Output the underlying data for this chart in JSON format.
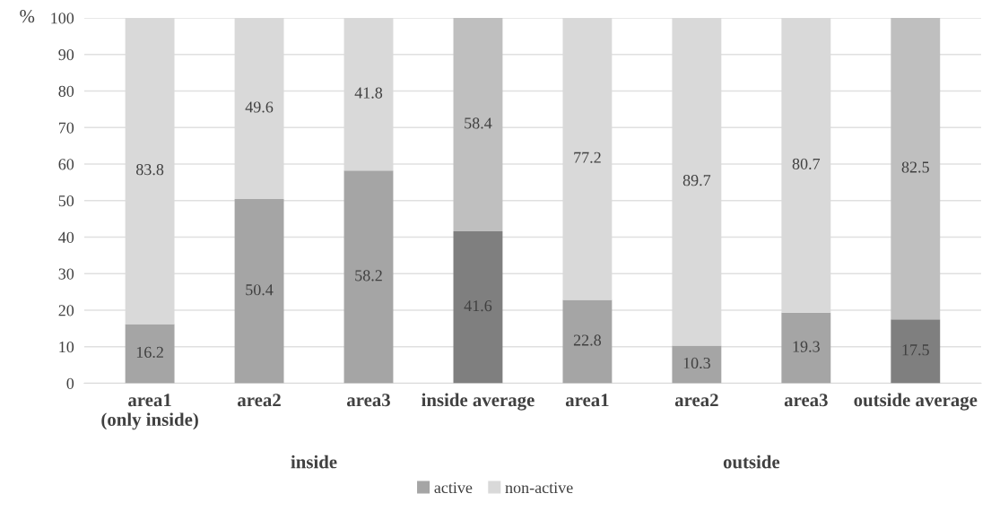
{
  "chart_data": {
    "type": "bar",
    "stacked": true,
    "ylabel": "%",
    "categories": [
      "area1\n(only inside)",
      "area2",
      "area3",
      "inside average",
      "area1",
      "area2",
      "area3",
      "outside average"
    ],
    "series": [
      {
        "name": "active",
        "color": "#a5a5a5",
        "colors": [
          "#a5a5a5",
          "#a5a5a5",
          "#a5a5a5",
          "#7f7f7f",
          "#a5a5a5",
          "#a5a5a5",
          "#a5a5a5",
          "#7f7f7f"
        ],
        "values": [
          16.2,
          50.4,
          58.2,
          41.6,
          22.8,
          10.3,
          19.3,
          17.5
        ]
      },
      {
        "name": "non-active",
        "color": "#d9d9d9",
        "colors": [
          "#d9d9d9",
          "#d9d9d9",
          "#d9d9d9",
          "#bfbfbf",
          "#d9d9d9",
          "#d9d9d9",
          "#d9d9d9",
          "#bfbfbf"
        ],
        "values": [
          83.8,
          49.6,
          41.8,
          58.4,
          77.2,
          89.7,
          80.7,
          82.5
        ]
      }
    ],
    "ylim": [
      0,
      100
    ],
    "yticks": [
      0,
      10,
      20,
      30,
      40,
      50,
      60,
      70,
      80,
      90,
      100
    ],
    "grid": "y",
    "legend": "bottom",
    "data_labels": true,
    "annotations": [
      "inside",
      "outside"
    ]
  }
}
